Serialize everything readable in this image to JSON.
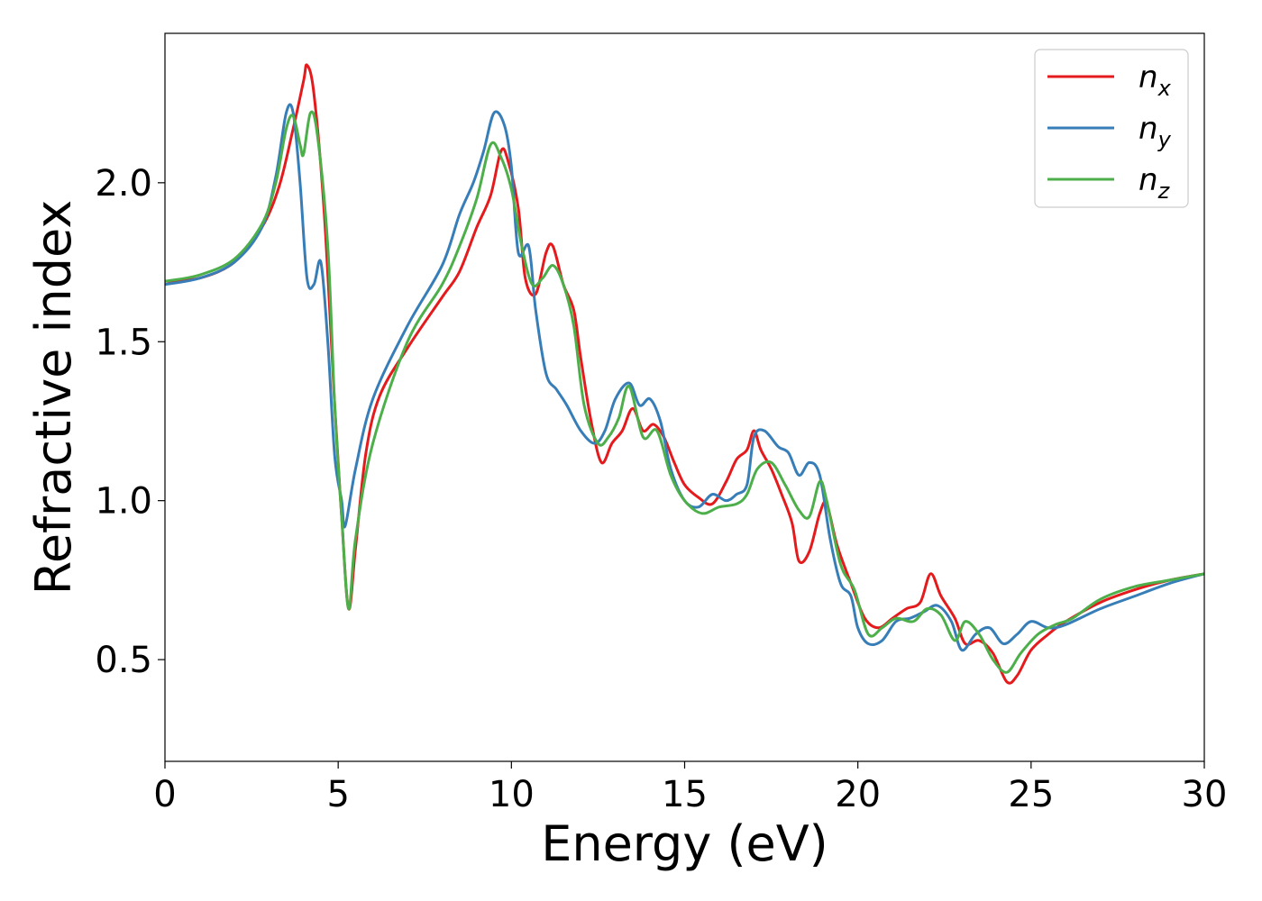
{
  "chart_data": {
    "type": "line",
    "xlabel": "Energy (eV)",
    "ylabel": "Refractive index",
    "xlim": [
      0,
      30
    ],
    "ylim": [
      0.18,
      2.47
    ],
    "xticks": [
      0,
      5,
      10,
      15,
      20,
      25,
      30
    ],
    "xtick_labels": [
      "0",
      "5",
      "10",
      "15",
      "20",
      "25",
      "30"
    ],
    "yticks": [
      0.5,
      1.0,
      1.5,
      2.0
    ],
    "ytick_labels": [
      "0.5",
      "1.0",
      "1.5",
      "2.0"
    ],
    "grid": false,
    "legend_position": "top-right",
    "series": [
      {
        "name": "n",
        "subscript": "x",
        "color": "#e41a1c",
        "points": [
          [
            0,
            1.69
          ],
          [
            1,
            1.7
          ],
          [
            2,
            1.75
          ],
          [
            2.8,
            1.86
          ],
          [
            3.3,
            1.99
          ],
          [
            3.7,
            2.17
          ],
          [
            4.0,
            2.32
          ],
          [
            4.1,
            2.37
          ],
          [
            4.3,
            2.28
          ],
          [
            4.6,
            1.9
          ],
          [
            4.9,
            1.3
          ],
          [
            5.1,
            0.95
          ],
          [
            5.3,
            0.66
          ],
          [
            5.5,
            0.85
          ],
          [
            5.8,
            1.15
          ],
          [
            6.2,
            1.33
          ],
          [
            7,
            1.48
          ],
          [
            8,
            1.64
          ],
          [
            8.5,
            1.72
          ],
          [
            9,
            1.86
          ],
          [
            9.4,
            1.96
          ],
          [
            9.7,
            2.1
          ],
          [
            9.9,
            2.07
          ],
          [
            10.2,
            1.92
          ],
          [
            10.4,
            1.7
          ],
          [
            10.7,
            1.65
          ],
          [
            11.0,
            1.78
          ],
          [
            11.2,
            1.8
          ],
          [
            11.5,
            1.68
          ],
          [
            11.8,
            1.6
          ],
          [
            12.0,
            1.45
          ],
          [
            12.3,
            1.25
          ],
          [
            12.6,
            1.12
          ],
          [
            12.9,
            1.18
          ],
          [
            13.2,
            1.22
          ],
          [
            13.5,
            1.29
          ],
          [
            13.8,
            1.22
          ],
          [
            14.1,
            1.24
          ],
          [
            14.4,
            1.2
          ],
          [
            14.7,
            1.12
          ],
          [
            15.0,
            1.05
          ],
          [
            15.4,
            1.01
          ],
          [
            15.8,
            0.99
          ],
          [
            16.2,
            1.06
          ],
          [
            16.5,
            1.13
          ],
          [
            16.8,
            1.16
          ],
          [
            17.0,
            1.22
          ],
          [
            17.2,
            1.16
          ],
          [
            17.5,
            1.1
          ],
          [
            17.8,
            1.02
          ],
          [
            18.1,
            0.93
          ],
          [
            18.3,
            0.81
          ],
          [
            18.6,
            0.84
          ],
          [
            18.9,
            0.96
          ],
          [
            19.1,
            0.99
          ],
          [
            19.4,
            0.86
          ],
          [
            19.8,
            0.74
          ],
          [
            20.2,
            0.63
          ],
          [
            20.6,
            0.6
          ],
          [
            21.0,
            0.63
          ],
          [
            21.4,
            0.66
          ],
          [
            21.8,
            0.68
          ],
          [
            22.1,
            0.77
          ],
          [
            22.4,
            0.7
          ],
          [
            22.8,
            0.63
          ],
          [
            23.1,
            0.55
          ],
          [
            23.5,
            0.56
          ],
          [
            23.9,
            0.52
          ],
          [
            24.3,
            0.43
          ],
          [
            24.6,
            0.45
          ],
          [
            25.0,
            0.53
          ],
          [
            25.5,
            0.58
          ],
          [
            26,
            0.62
          ],
          [
            27,
            0.68
          ],
          [
            28,
            0.72
          ],
          [
            29,
            0.75
          ],
          [
            30,
            0.77
          ]
        ]
      },
      {
        "name": "n",
        "subscript": "y",
        "color": "#377eb8",
        "points": [
          [
            0,
            1.68
          ],
          [
            1,
            1.7
          ],
          [
            2,
            1.75
          ],
          [
            2.8,
            1.86
          ],
          [
            3.2,
            2.02
          ],
          [
            3.5,
            2.22
          ],
          [
            3.7,
            2.22
          ],
          [
            3.9,
            2.0
          ],
          [
            4.1,
            1.7
          ],
          [
            4.3,
            1.68
          ],
          [
            4.5,
            1.75
          ],
          [
            4.7,
            1.5
          ],
          [
            4.9,
            1.14
          ],
          [
            5.1,
            1.0
          ],
          [
            5.2,
            0.92
          ],
          [
            5.5,
            1.1
          ],
          [
            6.0,
            1.32
          ],
          [
            7,
            1.55
          ],
          [
            8,
            1.74
          ],
          [
            8.5,
            1.9
          ],
          [
            8.9,
            2.0
          ],
          [
            9.2,
            2.1
          ],
          [
            9.5,
            2.22
          ],
          [
            9.8,
            2.18
          ],
          [
            10.0,
            2.05
          ],
          [
            10.2,
            1.78
          ],
          [
            10.5,
            1.8
          ],
          [
            10.7,
            1.6
          ],
          [
            11.0,
            1.4
          ],
          [
            11.3,
            1.35
          ],
          [
            11.6,
            1.3
          ],
          [
            12.0,
            1.22
          ],
          [
            12.4,
            1.18
          ],
          [
            12.7,
            1.22
          ],
          [
            13.0,
            1.32
          ],
          [
            13.4,
            1.37
          ],
          [
            13.7,
            1.3
          ],
          [
            14.0,
            1.32
          ],
          [
            14.3,
            1.25
          ],
          [
            14.6,
            1.1
          ],
          [
            15.0,
            1.0
          ],
          [
            15.4,
            0.98
          ],
          [
            15.8,
            1.02
          ],
          [
            16.2,
            1.0
          ],
          [
            16.5,
            1.02
          ],
          [
            16.8,
            1.05
          ],
          [
            17.0,
            1.2
          ],
          [
            17.3,
            1.22
          ],
          [
            17.7,
            1.17
          ],
          [
            18.0,
            1.15
          ],
          [
            18.3,
            1.08
          ],
          [
            18.6,
            1.12
          ],
          [
            18.9,
            1.08
          ],
          [
            19.2,
            0.88
          ],
          [
            19.5,
            0.74
          ],
          [
            19.8,
            0.7
          ],
          [
            20.0,
            0.6
          ],
          [
            20.3,
            0.55
          ],
          [
            20.7,
            0.56
          ],
          [
            21.1,
            0.62
          ],
          [
            21.5,
            0.63
          ],
          [
            21.9,
            0.65
          ],
          [
            22.3,
            0.67
          ],
          [
            22.7,
            0.62
          ],
          [
            23.0,
            0.53
          ],
          [
            23.4,
            0.58
          ],
          [
            23.8,
            0.6
          ],
          [
            24.2,
            0.55
          ],
          [
            24.6,
            0.58
          ],
          [
            25.0,
            0.62
          ],
          [
            25.5,
            0.6
          ],
          [
            26,
            0.61
          ],
          [
            27,
            0.66
          ],
          [
            28,
            0.7
          ],
          [
            29,
            0.74
          ],
          [
            30,
            0.77
          ]
        ]
      },
      {
        "name": "n",
        "subscript": "z",
        "color": "#4daf4a",
        "points": [
          [
            0,
            1.69
          ],
          [
            1,
            1.71
          ],
          [
            2,
            1.76
          ],
          [
            2.8,
            1.87
          ],
          [
            3.2,
            2.0
          ],
          [
            3.5,
            2.17
          ],
          [
            3.7,
            2.21
          ],
          [
            3.9,
            2.12
          ],
          [
            4.0,
            2.09
          ],
          [
            4.2,
            2.22
          ],
          [
            4.4,
            2.15
          ],
          [
            4.7,
            1.8
          ],
          [
            4.9,
            1.3
          ],
          [
            5.1,
            0.95
          ],
          [
            5.3,
            0.66
          ],
          [
            5.5,
            0.88
          ],
          [
            6.0,
            1.18
          ],
          [
            7,
            1.5
          ],
          [
            8,
            1.68
          ],
          [
            8.5,
            1.8
          ],
          [
            9.0,
            1.95
          ],
          [
            9.4,
            2.12
          ],
          [
            9.7,
            2.08
          ],
          [
            10.0,
            1.98
          ],
          [
            10.3,
            1.8
          ],
          [
            10.6,
            1.68
          ],
          [
            10.9,
            1.7
          ],
          [
            11.2,
            1.74
          ],
          [
            11.5,
            1.68
          ],
          [
            11.8,
            1.55
          ],
          [
            12.1,
            1.3
          ],
          [
            12.5,
            1.18
          ],
          [
            12.8,
            1.2
          ],
          [
            13.1,
            1.26
          ],
          [
            13.4,
            1.36
          ],
          [
            13.8,
            1.2
          ],
          [
            14.2,
            1.22
          ],
          [
            14.6,
            1.08
          ],
          [
            15.0,
            1.0
          ],
          [
            15.5,
            0.96
          ],
          [
            16.0,
            0.98
          ],
          [
            16.5,
            0.99
          ],
          [
            16.8,
            1.02
          ],
          [
            17.1,
            1.1
          ],
          [
            17.5,
            1.12
          ],
          [
            17.9,
            1.05
          ],
          [
            18.3,
            0.97
          ],
          [
            18.6,
            0.95
          ],
          [
            18.9,
            1.06
          ],
          [
            19.1,
            1.0
          ],
          [
            19.5,
            0.8
          ],
          [
            19.9,
            0.72
          ],
          [
            20.3,
            0.58
          ],
          [
            20.7,
            0.6
          ],
          [
            21.1,
            0.63
          ],
          [
            21.6,
            0.62
          ],
          [
            22.0,
            0.66
          ],
          [
            22.4,
            0.64
          ],
          [
            22.8,
            0.56
          ],
          [
            23.1,
            0.62
          ],
          [
            23.5,
            0.58
          ],
          [
            23.9,
            0.5
          ],
          [
            24.3,
            0.46
          ],
          [
            24.7,
            0.52
          ],
          [
            25.2,
            0.58
          ],
          [
            25.7,
            0.61
          ],
          [
            26.2,
            0.63
          ],
          [
            27,
            0.69
          ],
          [
            28,
            0.73
          ],
          [
            29,
            0.75
          ],
          [
            30,
            0.77
          ]
        ]
      }
    ]
  }
}
